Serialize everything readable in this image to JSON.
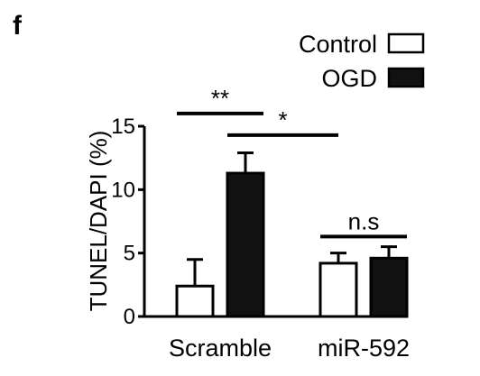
{
  "panel_label": "f",
  "chart_data": {
    "type": "bar",
    "categories": [
      "Scramble",
      "miR-592"
    ],
    "ylabel": "TUNEL/DAPI (%)",
    "ylim": [
      0,
      15
    ],
    "yticks": [
      0,
      5,
      10,
      15
    ],
    "series": [
      {
        "name": "Control",
        "color": "#ffffff",
        "values": [
          2.4,
          4.2
        ],
        "errors": [
          2.1,
          0.8
        ]
      },
      {
        "name": "OGD",
        "color": "#111111",
        "values": [
          11.3,
          4.6
        ],
        "errors": [
          1.6,
          0.9
        ]
      }
    ],
    "legend": {
      "position": "top-right"
    },
    "annotations": [
      {
        "text": "**",
        "from": [
          0,
          0
        ],
        "to": [
          0,
          1
        ],
        "level": 16.0
      },
      {
        "text": "*",
        "from": [
          0,
          1
        ],
        "to": [
          1,
          0
        ],
        "level": 14.3
      },
      {
        "text": "n.s",
        "from": [
          1,
          0
        ],
        "to": [
          1,
          1
        ],
        "level": 6.3
      }
    ]
  }
}
